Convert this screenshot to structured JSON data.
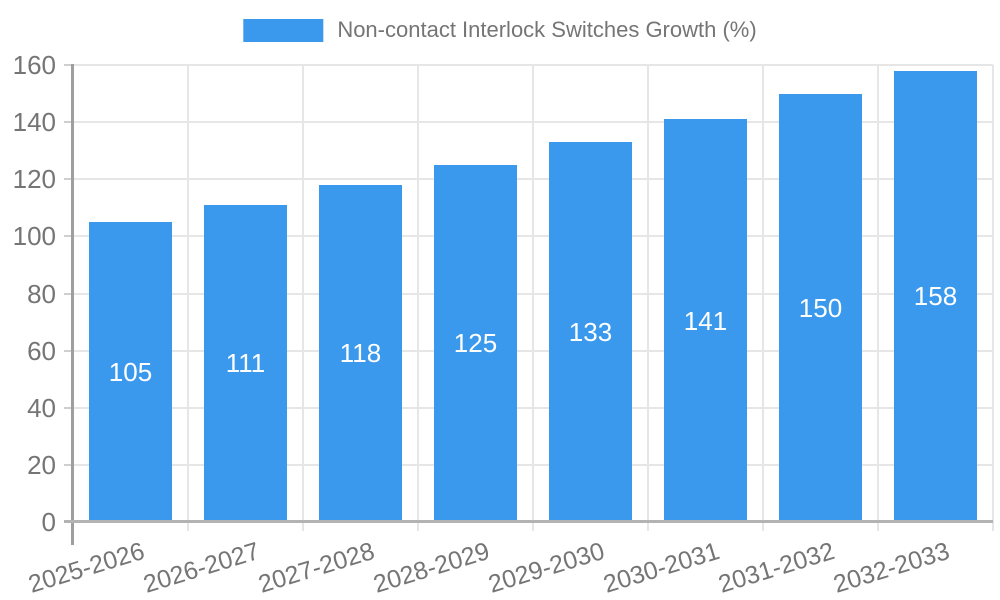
{
  "legend": {
    "items": [
      {
        "label": "Non-contact Interlock Switches Growth (%)",
        "color": "#3a99ec"
      }
    ]
  },
  "chart_data": {
    "type": "bar",
    "title": "",
    "xlabel": "",
    "ylabel": "",
    "categories": [
      "2025-2026",
      "2026-2027",
      "2027-2028",
      "2028-2029",
      "2029-2030",
      "2030-2031",
      "2031-2032",
      "2032-2033"
    ],
    "series": [
      {
        "name": "Non-contact Interlock Switches Growth (%)",
        "values": [
          105,
          111,
          118,
          125,
          133,
          141,
          150,
          158
        ],
        "color": "#3a99ec"
      }
    ],
    "value_labels": [
      "105",
      "111",
      "118",
      "125",
      "133",
      "141",
      "150",
      "158"
    ],
    "value_label_position": "inside-center",
    "ylim": [
      0,
      160
    ],
    "yticks": [
      0,
      20,
      40,
      60,
      80,
      100,
      120,
      140,
      160
    ],
    "grid": true,
    "legend_position": "top-center",
    "x_tick_rotation_deg": -17
  },
  "colors": {
    "bar": "#3a99ec",
    "bar_label": "#ffffff",
    "grid": "#e6e6e6",
    "tick": "#cfcfcf",
    "y_axis_line": "#9e9e9e",
    "x_axis_line": "#b3b3b3",
    "text": "#757575",
    "background": "#ffffff"
  }
}
